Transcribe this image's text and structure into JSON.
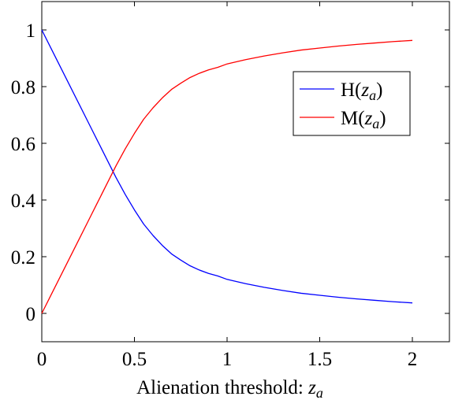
{
  "chart_data": {
    "type": "line",
    "title": "",
    "xlabel": "Alienation threshold: ",
    "xlabel_var": "z",
    "xlabel_sub": "a",
    "ylabel": "",
    "xlim": [
      0,
      2.2
    ],
    "ylim": [
      -0.1,
      1.1
    ],
    "xticks": [
      0,
      0.5,
      1,
      1.5,
      2
    ],
    "xtick_labels": [
      "0",
      "0.5",
      "1",
      "1.5",
      "2"
    ],
    "yticks": [
      0,
      0.2,
      0.4,
      0.6,
      0.8,
      1
    ],
    "ytick_labels": [
      "0",
      "0.2",
      "0.4",
      "0.6",
      "0.8",
      "1"
    ],
    "grid": false,
    "legend_position": "top-right",
    "series": [
      {
        "name_prefix": "H(",
        "name_var": "z",
        "name_sub": "a",
        "name_suffix": ")",
        "color": "#0000ff",
        "x": [
          0,
          0.05,
          0.1,
          0.15,
          0.2,
          0.25,
          0.3,
          0.35,
          0.4,
          0.45,
          0.5,
          0.55,
          0.6,
          0.65,
          0.7,
          0.75,
          0.8,
          0.85,
          0.9,
          0.95,
          1.0,
          1.02,
          1.1,
          1.2,
          1.3,
          1.4,
          1.5,
          1.6,
          1.7,
          1.8,
          1.9,
          2.0
        ],
        "y": [
          1.0,
          0.935,
          0.87,
          0.805,
          0.74,
          0.675,
          0.61,
          0.545,
          0.48,
          0.42,
          0.365,
          0.315,
          0.275,
          0.24,
          0.21,
          0.188,
          0.168,
          0.153,
          0.141,
          0.132,
          0.12,
          0.117,
          0.105,
          0.092,
          0.081,
          0.071,
          0.064,
          0.057,
          0.051,
          0.046,
          0.041,
          0.037
        ]
      },
      {
        "name_prefix": "M(",
        "name_var": "z",
        "name_sub": "a",
        "name_suffix": ")",
        "color": "#ff0000",
        "x": [
          0,
          0.05,
          0.1,
          0.15,
          0.2,
          0.25,
          0.3,
          0.35,
          0.4,
          0.45,
          0.5,
          0.55,
          0.6,
          0.65,
          0.7,
          0.75,
          0.8,
          0.85,
          0.9,
          0.95,
          1.0,
          1.02,
          1.1,
          1.2,
          1.3,
          1.4,
          1.5,
          1.6,
          1.7,
          1.8,
          1.9,
          2.0
        ],
        "y": [
          0.0,
          0.065,
          0.13,
          0.195,
          0.26,
          0.325,
          0.39,
          0.455,
          0.52,
          0.58,
          0.635,
          0.685,
          0.725,
          0.76,
          0.79,
          0.812,
          0.832,
          0.847,
          0.859,
          0.868,
          0.88,
          0.883,
          0.895,
          0.908,
          0.919,
          0.929,
          0.936,
          0.943,
          0.949,
          0.954,
          0.959,
          0.963
        ]
      }
    ]
  }
}
